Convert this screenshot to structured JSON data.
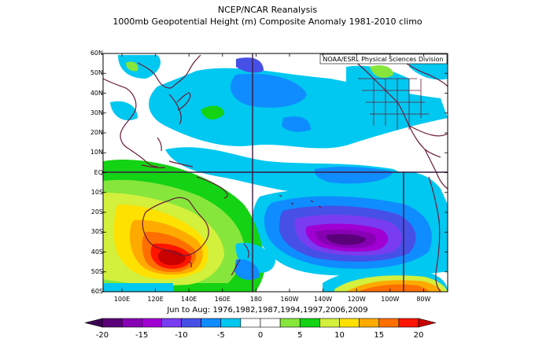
{
  "title": {
    "line1": "NCEP/NCAR Reanalysis",
    "line2": "1000mb Geopotential Height (m) Composite Anomaly 1981-2010 climo"
  },
  "credit": "NOAA/ESRL Physical Sciences Division",
  "subtitle": "Jun to Aug: 1976,1982,1987,1994,1997,2006,2009",
  "lat_labels": [
    "60N",
    "50N",
    "40N",
    "30N",
    "20N",
    "10N",
    "EQ",
    "10S",
    "20S",
    "30S",
    "40S",
    "50S",
    "60S"
  ],
  "lon_labels": [
    "100E",
    "120E",
    "140E",
    "160E",
    "180",
    "160W",
    "140W",
    "120W",
    "100W",
    "80W"
  ],
  "colorbar": {
    "labels": [
      "-20",
      "-15",
      "-10",
      "-5",
      "0",
      "5",
      "10",
      "15",
      "20"
    ],
    "colors": [
      "#5a0078",
      "#8700b4",
      "#a000d2",
      "#7a3cf0",
      "#4650e6",
      "#0f8cff",
      "#00c8f0",
      "#ffffff",
      "#ffffff",
      "#86e63c",
      "#14d214",
      "#d2f03c",
      "#ffe100",
      "#ffaa00",
      "#ff6e00",
      "#ff1400"
    ]
  },
  "colors": {
    "land": "#6b1a3a",
    "deep_negative": "#6a0096",
    "positive_max": "#e60000"
  }
}
